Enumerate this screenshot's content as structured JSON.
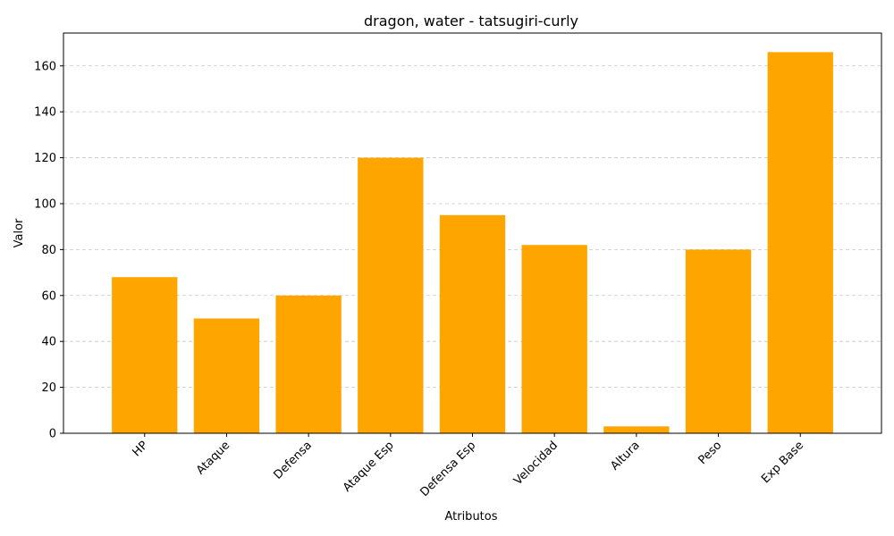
{
  "chart_data": {
    "type": "bar",
    "title": "dragon, water - tatsugiri-curly",
    "xlabel": "Atributos",
    "ylabel": "Valor",
    "categories": [
      "HP",
      "Ataque",
      "Defensa",
      "Ataque Esp",
      "Defensa Esp",
      "Velocidad",
      "Altura",
      "Peso",
      "Exp Base"
    ],
    "values": [
      68,
      50,
      60,
      120,
      95,
      82,
      3,
      80,
      166
    ],
    "ylim": [
      0,
      174.3
    ],
    "yticks": [
      0,
      20,
      40,
      60,
      80,
      100,
      120,
      140,
      160
    ],
    "grid": "y",
    "bar_color": "#FFA500"
  }
}
